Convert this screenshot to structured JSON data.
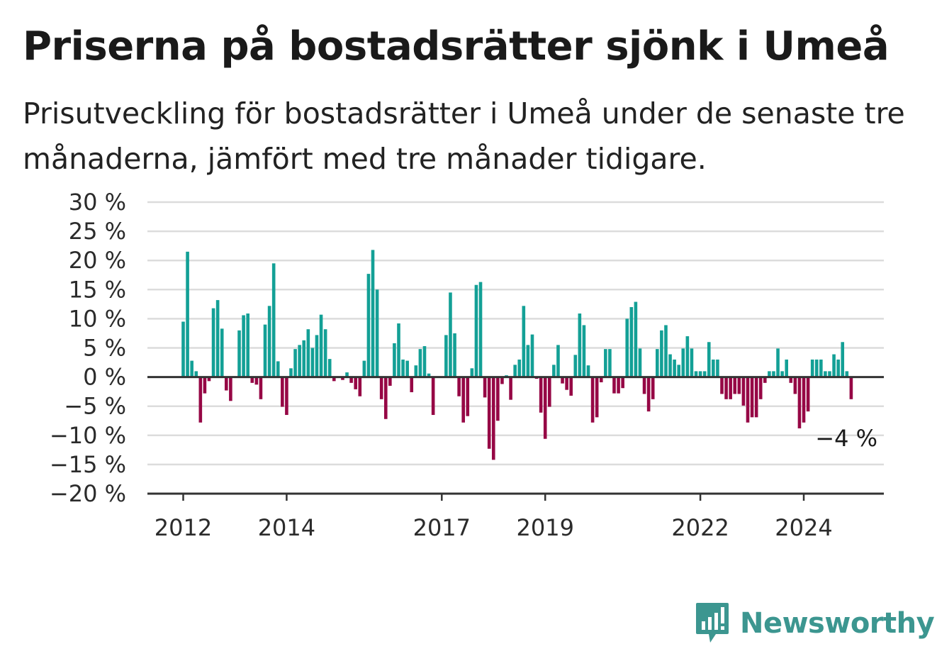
{
  "title": "Priserna på bostadsrätter sjönk i Umeå",
  "subtitle": "Prisutveckling för bostadsrätter i Umeå under de senaste tre månaderna, jämfört med tre månader tidigare.",
  "brand": {
    "name": "Newsworthy",
    "color": "#3c9690"
  },
  "colors": {
    "positive": "#13a096",
    "negative": "#960745",
    "grid": "#dcdcdc",
    "axis": "#333333"
  },
  "chart_data": {
    "type": "bar",
    "title": "Priserna på bostadsrätter sjönk i Umeå",
    "xlabel": "",
    "ylabel": "",
    "unit": "%",
    "x_start": "2012-01",
    "x_end": "2025-02",
    "ylim": [
      -20,
      30
    ],
    "y_ticks": [
      30,
      25,
      20,
      15,
      10,
      5,
      0,
      -5,
      -10,
      -15,
      -20
    ],
    "y_tick_labels": [
      "30 %",
      "25 %",
      "20 %",
      "15 %",
      "10 %",
      "5 %",
      "0 %",
      "−5 %",
      "−10 %",
      "−15 %",
      "−20 %"
    ],
    "x_ticks": [
      "2012",
      "2014",
      "2017",
      "2019",
      "2022",
      "2024"
    ],
    "grid": true,
    "values": [
      9.5,
      21.5,
      2.8,
      1.0,
      -7.8,
      -2.8,
      -0.7,
      11.8,
      13.2,
      8.3,
      -2.3,
      -4.1,
      0,
      8.0,
      10.6,
      10.9,
      -1.0,
      -1.3,
      -3.8,
      9.0,
      12.2,
      19.5,
      2.7,
      -5.1,
      -6.5,
      1.5,
      4.8,
      5.5,
      6.3,
      8.2,
      5.0,
      7.2,
      10.7,
      8.2,
      3.1,
      -0.7,
      0,
      -0.5,
      0.8,
      -1.0,
      -2.1,
      -3.3,
      2.8,
      17.7,
      21.8,
      15.0,
      -3.8,
      -7.2,
      -1.5,
      5.8,
      9.2,
      3.0,
      2.8,
      -2.6,
      2.0,
      4.8,
      5.3,
      0.6,
      -6.5,
      0,
      0,
      7.2,
      14.5,
      7.5,
      -3.3,
      -7.8,
      -6.7,
      1.5,
      15.8,
      16.3,
      -3.5,
      -12.3,
      -14.2,
      -7.5,
      -1.2,
      0.3,
      -3.9,
      2.1,
      3.0,
      12.2,
      5.5,
      7.3,
      -0.3,
      -6.1,
      -10.6,
      -5.1,
      2.1,
      5.5,
      -1.1,
      -2.2,
      -3.2,
      3.8,
      10.9,
      8.9,
      2.0,
      -7.8,
      -6.9,
      -0.9,
      4.8,
      4.8,
      -2.8,
      -2.8,
      -1.9,
      10.0,
      12.0,
      12.9,
      4.9,
      -2.9,
      -5.9,
      -3.8,
      4.8,
      8.0,
      8.9,
      3.9,
      3.0,
      2.1,
      4.9,
      7.0,
      4.9,
      1.0,
      1.0,
      1.0,
      6.0,
      3.0,
      3.0,
      -2.9,
      -3.8,
      -3.8,
      -2.9,
      -2.9,
      -4.9,
      -7.8,
      -6.9,
      -6.9,
      -3.8,
      -1.0,
      1.0,
      1.0,
      4.9,
      1.0,
      3.0,
      -1.0,
      -2.9,
      -8.8,
      -7.8,
      -5.9,
      3.0,
      3.0,
      3.0,
      1.0,
      1.0,
      3.9,
      3.0,
      6.0,
      1.0,
      -3.8
    ],
    "last_value": -3.8,
    "last_value_label": "−4 %"
  }
}
